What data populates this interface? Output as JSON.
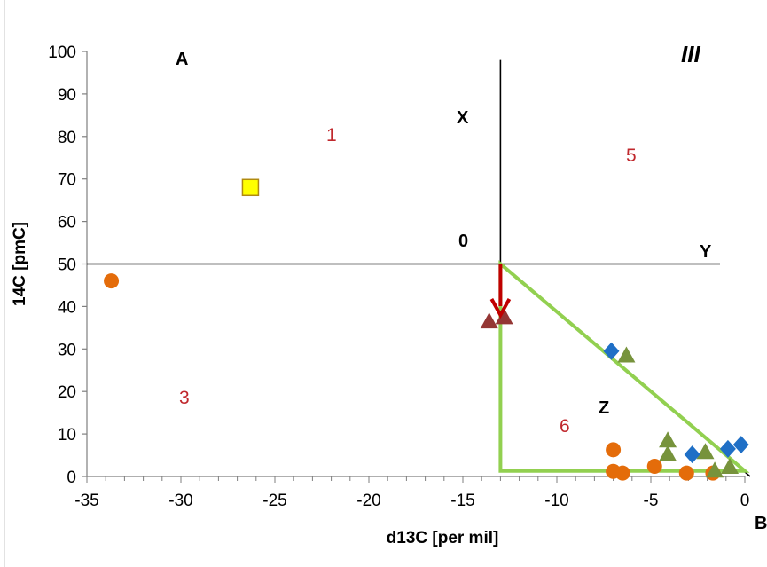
{
  "chart_data": {
    "type": "scatter",
    "xlabel": "d13C [per mil]",
    "ylabel": "14C [pmC]",
    "xlim": [
      -35,
      0
    ],
    "ylim": [
      0,
      100
    ],
    "x_ticks": [
      "-35",
      "-30",
      "-25",
      "-20",
      "-15",
      "-10",
      "-5",
      "0"
    ],
    "y_ticks": [
      "0",
      "10",
      "20",
      "30",
      "40",
      "50",
      "60",
      "70",
      "80",
      "90",
      "100"
    ],
    "grid": false,
    "series": [
      {
        "marker": "circle",
        "color": "#e46c0a",
        "points": [
          [
            -33.7,
            46
          ],
          [
            -7.0,
            6.3
          ],
          [
            -7.0,
            1.2
          ],
          [
            -6.5,
            0.8
          ],
          [
            -4.8,
            2.4
          ],
          [
            -3.1,
            0.8
          ],
          [
            -1.7,
            0.8
          ]
        ]
      },
      {
        "marker": "square",
        "color": "#ffff00",
        "edge": "#b08a10",
        "points": [
          [
            -26.3,
            68
          ]
        ]
      },
      {
        "marker": "triangle",
        "color": "#943634",
        "points": [
          [
            -13.6,
            36.5
          ],
          [
            -12.8,
            37.5
          ]
        ]
      },
      {
        "marker": "triangle",
        "color": "#77933c",
        "points": [
          [
            -6.3,
            28.5
          ],
          [
            -4.1,
            8.5
          ],
          [
            -4.1,
            5.3
          ],
          [
            -2.1,
            5.8
          ],
          [
            -1.6,
            1.4
          ],
          [
            -0.8,
            2.3
          ]
        ]
      },
      {
        "marker": "diamond",
        "color": "#1f6fc6",
        "points": [
          [
            -7.1,
            29.5
          ],
          [
            -2.8,
            5.2
          ],
          [
            -0.9,
            6.5
          ],
          [
            -0.2,
            7.5
          ]
        ]
      }
    ],
    "reference_lines": {
      "vertical_x": -13,
      "vertical_ylim": [
        50,
        98
      ],
      "horizontal_y": 50,
      "diagonal": [
        [
          -13,
          50
        ],
        [
          0,
          0
        ]
      ]
    },
    "highlight_triangle": {
      "color": "#92d050",
      "vertices": [
        [
          -13,
          50
        ],
        [
          -13,
          1.3
        ],
        [
          0,
          1.3
        ]
      ]
    },
    "arrow": {
      "color": "#c00000",
      "from": [
        -13,
        50
      ],
      "to": [
        -13,
        38
      ]
    },
    "annotations": {
      "A": "A",
      "B": "B",
      "roman": "III",
      "X": "X",
      "Y": "Y",
      "Z": "Z",
      "O": "0",
      "n1": "1",
      "n3": "3",
      "n5": "5",
      "n6": "6"
    }
  }
}
